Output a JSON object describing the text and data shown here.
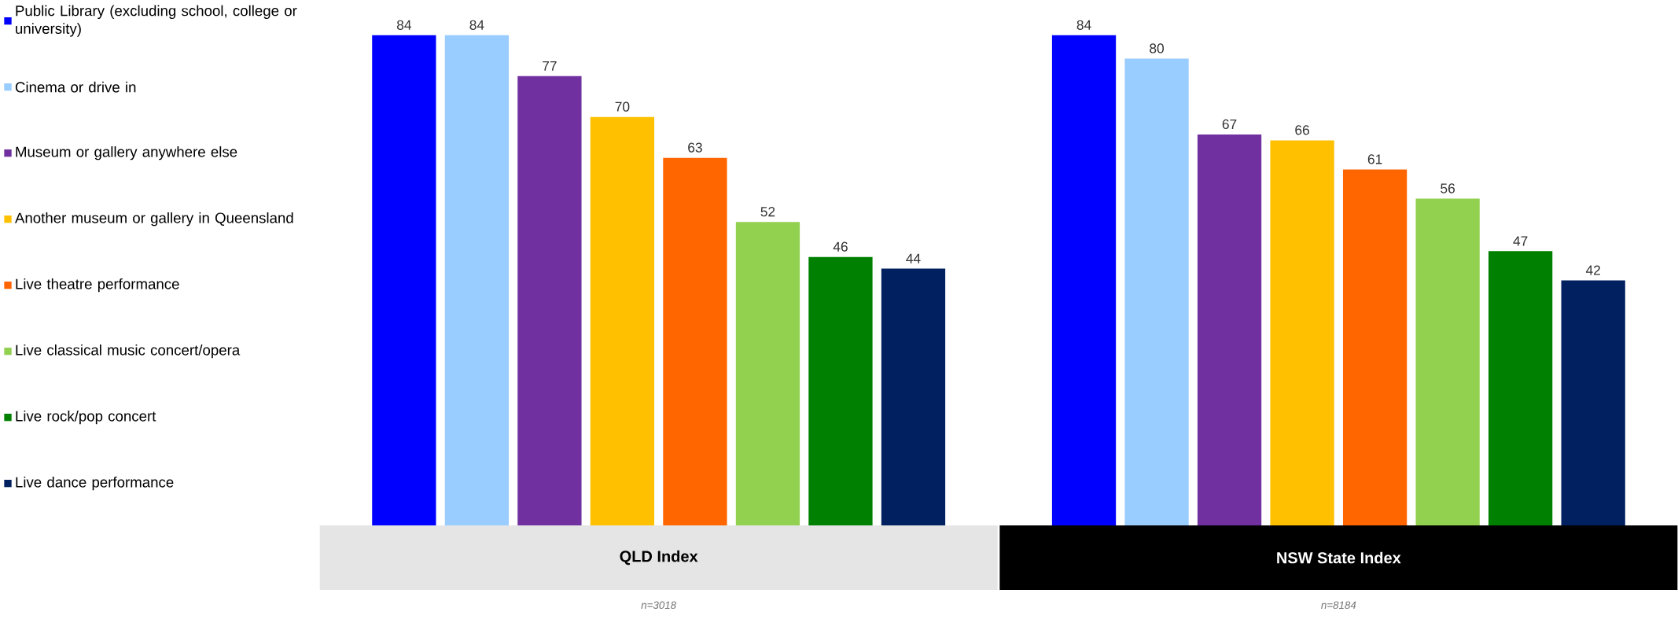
{
  "chart_data": {
    "type": "bar",
    "categories": [
      "QLD  Index",
      "NSW State Index"
    ],
    "series": [
      {
        "name": "Public Library (excluding school, college or university)",
        "color": "#0000ff",
        "values": [
          84,
          84
        ]
      },
      {
        "name": "Cinema or drive in",
        "color": "#99ccff",
        "values": [
          84,
          80
        ]
      },
      {
        "name": "Museum or gallery anywhere else",
        "color": "#7030a0",
        "values": [
          77,
          67
        ]
      },
      {
        "name": "Another museum or gallery in Queensland",
        "color": "#ffc000",
        "values": [
          70,
          66
        ]
      },
      {
        "name": "Live theatre performance",
        "color": "#ff6600",
        "values": [
          63,
          61
        ]
      },
      {
        "name": "Live classical music concert/opera",
        "color": "#92d050",
        "values": [
          52,
          56
        ]
      },
      {
        "name": "Live rock/pop concert",
        "color": "#008000",
        "values": [
          46,
          47
        ]
      },
      {
        "name": "Live dance performance",
        "color": "#002060",
        "values": [
          44,
          42
        ]
      }
    ],
    "data_labels": true,
    "legend": "left",
    "annotations": [
      "n=3018",
      "n=8184"
    ]
  }
}
